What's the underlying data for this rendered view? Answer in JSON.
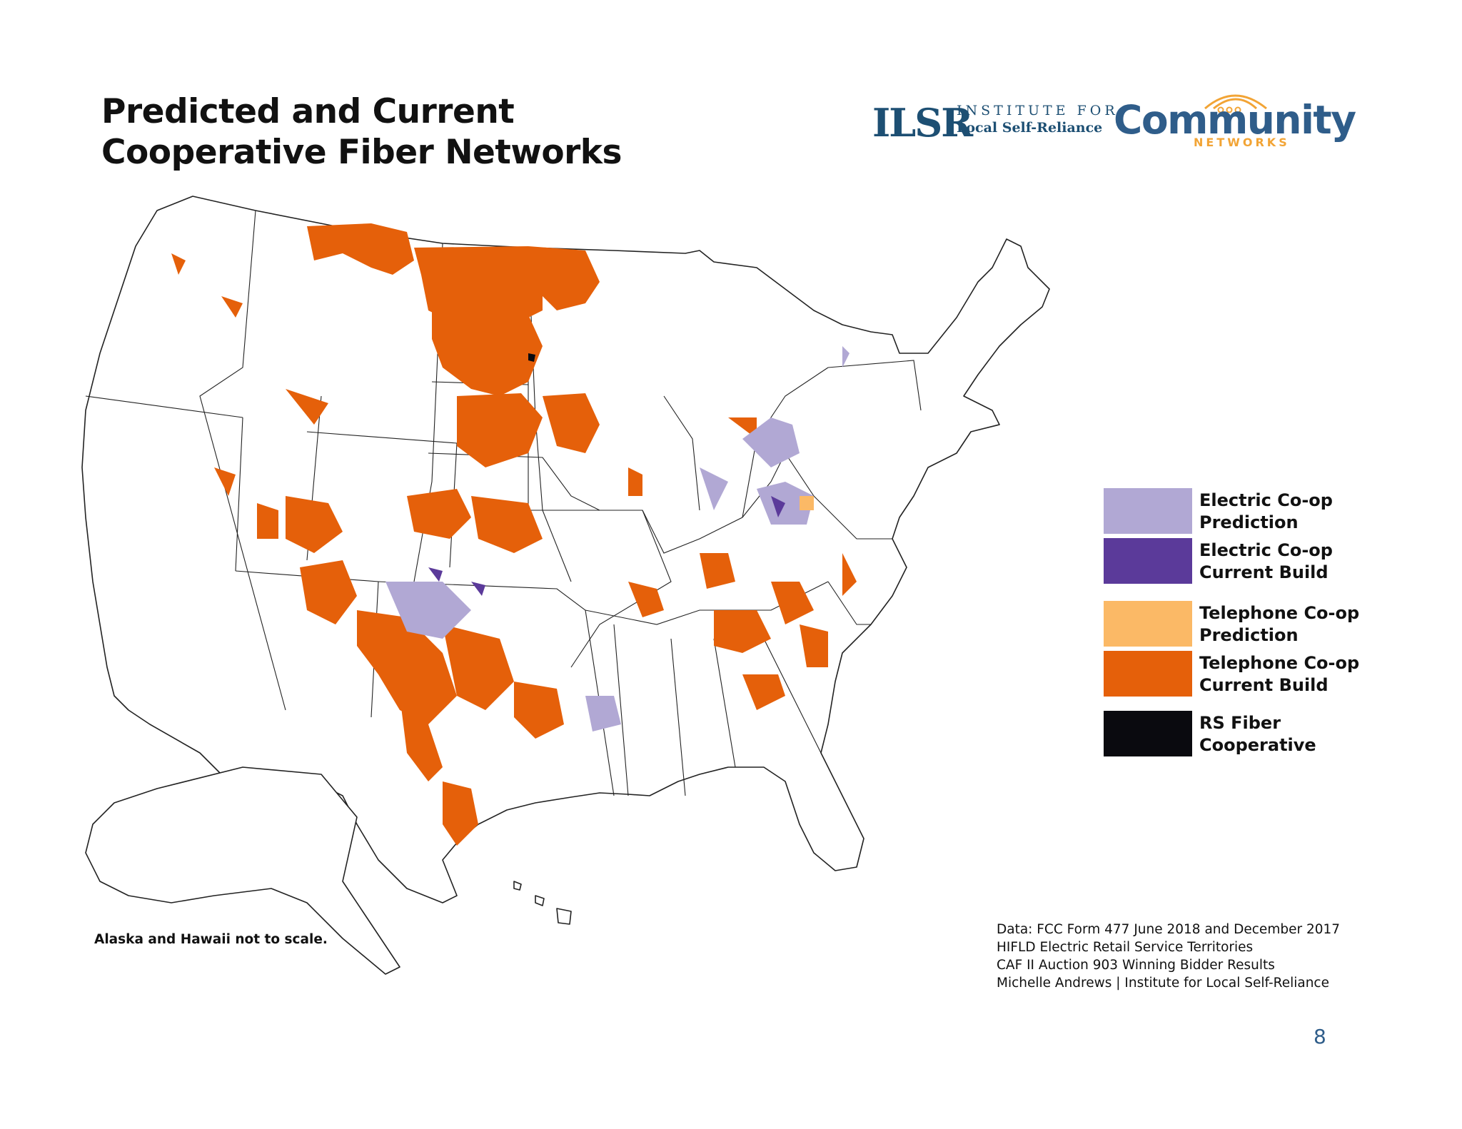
{
  "title": {
    "line1": "Predicted and Current",
    "line2": "Cooperative Fiber Networks"
  },
  "logos": {
    "ilsr_mark": "ILSR",
    "ilsr_line1": "INSTITUTE FOR",
    "ilsr_line2": "Local Self-Reliance",
    "community_word": "Community",
    "community_sub": "NETWORKS",
    "ilsr_color": "#1d4f73",
    "community_color": "#2f5d8a",
    "community_accent": "#f2a435"
  },
  "legend": {
    "items": [
      {
        "key": "electric_prediction",
        "line1": "Electric Co-op",
        "line2": "Prediction",
        "color": "#b1a8d4"
      },
      {
        "key": "electric_current",
        "line1": "Electric Co-op",
        "line2": "Current Build",
        "color": "#5b3a9a"
      },
      {
        "key": "telephone_prediction",
        "line1": "Telephone Co-op",
        "line2": "Prediction",
        "color": "#fbb966"
      },
      {
        "key": "telephone_current",
        "line1": "Telephone Co-op",
        "line2": "Current Build",
        "color": "#e5600a"
      },
      {
        "key": "rs_fiber",
        "line1": "RS Fiber",
        "line2": "Cooperative",
        "color": "#0a0a0f"
      }
    ]
  },
  "note": "Alaska and Hawaii not to scale.",
  "sources": [
    "Data: FCC Form 477 June 2018 and December 2017",
    "HIFLD Electric Retail Service Territories",
    "CAF II Auction 903 Winning Bidder Results",
    "Michelle Andrews | Institute for Local Self-Reliance"
  ],
  "page_number": "8"
}
